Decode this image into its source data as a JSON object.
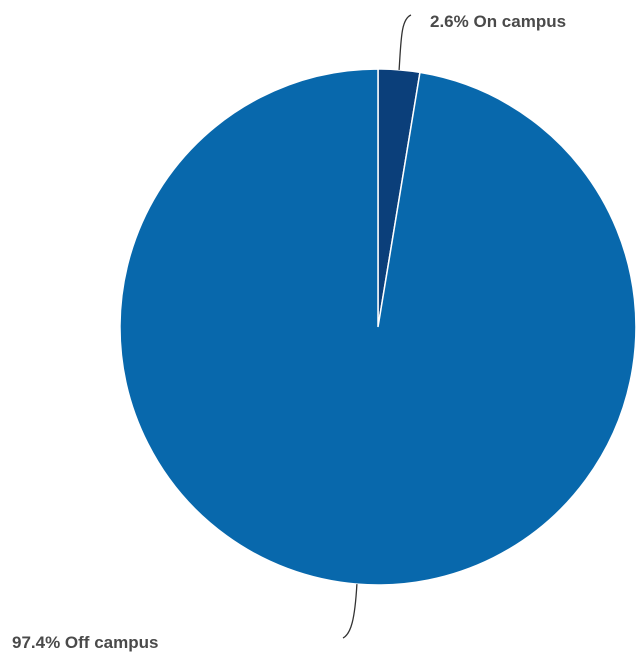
{
  "chart_data": {
    "type": "pie",
    "title": "",
    "legend": "none",
    "start_angle_deg": 0,
    "direction": "clockwise",
    "slices": [
      {
        "label": "On campus",
        "value": 2.6,
        "display": "2.6% On campus",
        "color": "#0b3f7a"
      },
      {
        "label": "Off campus",
        "value": 97.4,
        "display": "97.4% Off campus",
        "color": "#0868ac"
      }
    ]
  }
}
